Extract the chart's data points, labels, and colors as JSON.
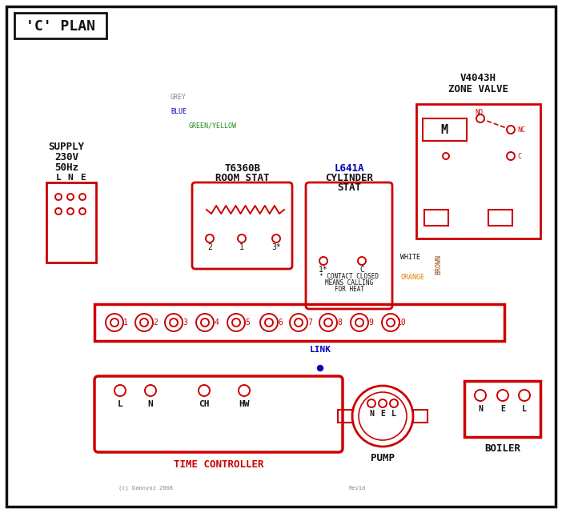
{
  "bg_color": "#ffffff",
  "colors": {
    "red": "#cc0000",
    "blue": "#0000bb",
    "green": "#228B22",
    "brown": "#8B4513",
    "black": "#111111",
    "grey": "#888888",
    "orange": "#E08000",
    "white": "#ffffff"
  },
  "title": "'C' PLAN",
  "supply_lines": [
    "SUPPLY",
    "230V",
    "50Hz"
  ],
  "lne": [
    "L",
    "N",
    "E"
  ],
  "room_stat": [
    "T6360B",
    "ROOM STAT"
  ],
  "cyl_stat": [
    "L641A",
    "CYLINDER",
    "STAT"
  ],
  "zone_valve": [
    "V4043H",
    "ZONE VALVE"
  ],
  "tc_label": "TIME CONTROLLER",
  "tc_terms": [
    "L",
    "N",
    "CH",
    "HW"
  ],
  "pump_label": "PUMP",
  "pump_terms": [
    "N",
    "E",
    "L"
  ],
  "boiler_label": "BOILER",
  "boiler_terms": [
    "N",
    "E",
    "L"
  ],
  "link_label": "LINK",
  "wire_labels": {
    "grey": "GREY",
    "blue": "BLUE",
    "green_yellow": "GREEN/YELLOW",
    "brown": "BROWN",
    "white": "WHITE",
    "orange": "ORANGE"
  },
  "contact_note": [
    "* CONTACT CLOSED",
    "MEANS CALLING",
    "FOR HEAT"
  ],
  "motor": "M",
  "no_label": "NO",
  "nc_label": "NC",
  "c_label": "C",
  "copyright": "(c) Dannyoz 2008",
  "rev": "Rev1d"
}
